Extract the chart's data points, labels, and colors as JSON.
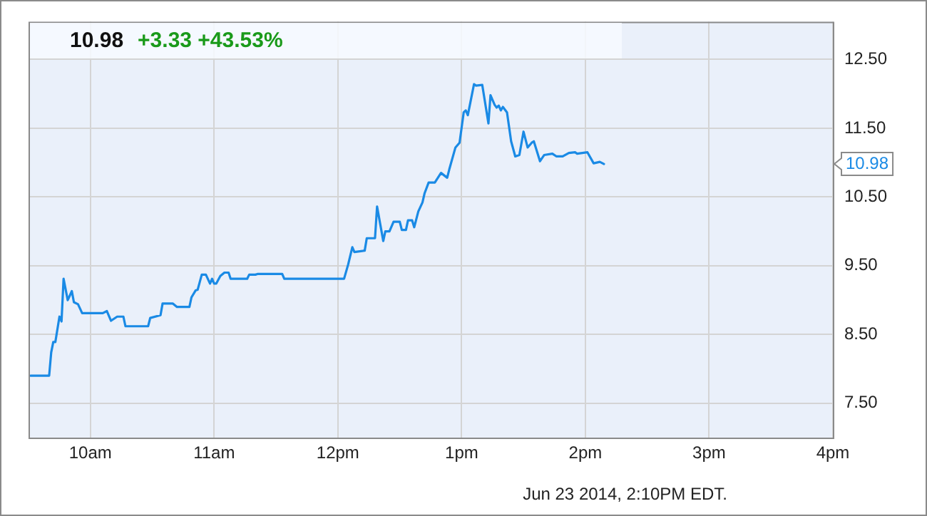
{
  "chart_data": {
    "type": "line",
    "title": "10.98",
    "subtitle": "+3.33 +43.53%",
    "x": [
      "2014-06-23T09:31",
      "2014-06-23T09:40",
      "2014-06-23T09:41",
      "2014-06-23T09:42",
      "2014-06-23T09:43",
      "2014-06-23T09:45",
      "2014-06-23T09:46",
      "2014-06-23T09:47",
      "2014-06-23T09:49",
      "2014-06-23T09:51",
      "2014-06-23T09:52",
      "2014-06-23T09:54",
      "2014-06-23T09:56",
      "2014-06-23T10:06",
      "2014-06-23T10:08",
      "2014-06-23T10:10",
      "2014-06-23T10:13",
      "2014-06-23T10:16",
      "2014-06-23T10:17",
      "2014-06-23T10:28",
      "2014-06-23T10:29",
      "2014-06-23T10:34",
      "2014-06-23T10:35",
      "2014-06-23T10:40",
      "2014-06-23T10:42",
      "2014-06-23T10:48",
      "2014-06-23T10:49",
      "2014-06-23T10:51",
      "2014-06-23T10:52",
      "2014-06-23T10:54",
      "2014-06-23T10:56",
      "2014-06-23T10:58",
      "2014-06-23T10:59",
      "2014-06-23T11:00",
      "2014-06-23T11:01",
      "2014-06-23T11:03",
      "2014-06-23T11:05",
      "2014-06-23T11:07",
      "2014-06-23T11:08",
      "2014-06-23T11:16",
      "2014-06-23T11:17",
      "2014-06-23T11:20",
      "2014-06-23T11:21",
      "2014-06-23T11:33",
      "2014-06-23T11:34",
      "2014-06-23T12:03",
      "2014-06-23T12:05",
      "2014-06-23T12:07",
      "2014-06-23T12:08",
      "2014-06-23T12:13",
      "2014-06-23T12:14",
      "2014-06-23T12:18",
      "2014-06-23T12:19",
      "2014-06-23T12:22",
      "2014-06-23T12:23",
      "2014-06-23T12:25",
      "2014-06-23T12:27",
      "2014-06-23T12:30",
      "2014-06-23T12:31",
      "2014-06-23T12:33",
      "2014-06-23T12:34",
      "2014-06-23T12:36",
      "2014-06-23T12:37",
      "2014-06-23T12:39",
      "2014-06-23T12:41",
      "2014-06-23T12:42",
      "2014-06-23T12:44",
      "2014-06-23T12:47",
      "2014-06-23T12:50",
      "2014-06-23T12:53",
      "2014-06-23T12:54",
      "2014-06-23T12:57",
      "2014-06-23T12:59",
      "2014-06-23T13:01",
      "2014-06-23T13:02",
      "2014-06-23T13:03",
      "2014-06-23T13:06",
      "2014-06-23T13:07",
      "2014-06-23T13:10",
      "2014-06-23T13:13",
      "2014-06-23T13:14",
      "2014-06-23T13:16",
      "2014-06-23T13:17",
      "2014-06-23T13:18",
      "2014-06-23T13:19",
      "2014-06-23T13:20",
      "2014-06-23T13:22",
      "2014-06-23T13:24",
      "2014-06-23T13:26",
      "2014-06-23T13:28",
      "2014-06-23T13:30",
      "2014-06-23T13:32",
      "2014-06-23T13:34",
      "2014-06-23T13:35",
      "2014-06-23T13:38",
      "2014-06-23T13:40",
      "2014-06-23T13:44",
      "2014-06-23T13:46",
      "2014-06-23T13:49",
      "2014-06-23T13:52",
      "2014-06-23T13:55",
      "2014-06-23T13:56",
      "2014-06-23T14:01",
      "2014-06-23T14:04",
      "2014-06-23T14:07",
      "2014-06-23T14:09"
    ],
    "series": [
      {
        "color": "#1a8ae5",
        "values": [
          7.9,
          7.9,
          8.24,
          8.39,
          8.39,
          8.76,
          8.69,
          9.31,
          9.0,
          9.13,
          8.97,
          8.94,
          8.81,
          8.81,
          8.84,
          8.7,
          8.76,
          8.76,
          8.62,
          8.62,
          8.74,
          8.78,
          8.95,
          8.95,
          8.9,
          8.9,
          9.04,
          9.14,
          9.15,
          9.37,
          9.37,
          9.24,
          9.31,
          9.24,
          9.24,
          9.35,
          9.4,
          9.4,
          9.31,
          9.31,
          9.37,
          9.37,
          9.38,
          9.38,
          9.31,
          9.31,
          9.52,
          9.77,
          9.7,
          9.72,
          9.9,
          9.9,
          10.36,
          9.86,
          10.0,
          10.0,
          10.14,
          10.14,
          10.02,
          10.02,
          10.16,
          10.16,
          10.06,
          10.29,
          10.42,
          10.55,
          10.71,
          10.71,
          10.85,
          10.78,
          10.9,
          11.22,
          11.29,
          11.73,
          11.76,
          11.69,
          12.14,
          12.12,
          12.13,
          11.57,
          11.98,
          11.84,
          11.8,
          11.83,
          11.76,
          11.81,
          11.73,
          11.31,
          11.09,
          11.11,
          11.45,
          11.22,
          11.29,
          11.31,
          11.02,
          11.11,
          11.13,
          11.09,
          11.09,
          11.14,
          11.15,
          11.13,
          11.15,
          10.99,
          11.01,
          10.98
        ]
      }
    ],
    "xlim": [
      "2014-06-23T09:30",
      "2014-06-23T16:00"
    ],
    "xticks": [
      {
        "value": "2014-06-23T10:00",
        "label": "10am"
      },
      {
        "value": "2014-06-23T11:00",
        "label": "11am"
      },
      {
        "value": "2014-06-23T12:00",
        "label": "12pm"
      },
      {
        "value": "2014-06-23T13:00",
        "label": "1pm"
      },
      {
        "value": "2014-06-23T14:00",
        "label": "2pm"
      },
      {
        "value": "2014-06-23T15:00",
        "label": "3pm"
      },
      {
        "value": "2014-06-23T16:00",
        "label": "4pm"
      }
    ],
    "ylim": [
      7,
      13.05
    ],
    "yticks": [
      {
        "value": 7.5,
        "label": "7.50"
      },
      {
        "value": 8.5,
        "label": "8.50"
      },
      {
        "value": 9.5,
        "label": "9.50"
      },
      {
        "value": 10.5,
        "label": "10.50"
      },
      {
        "value": 11.5,
        "label": "11.50"
      },
      {
        "value": 12.5,
        "label": "12.50"
      }
    ],
    "annotations": [
      "10.98",
      "Jun 23 2014, 2:10PM EDT."
    ],
    "grid": true,
    "legend": false,
    "marker": "none",
    "line_style": "solid"
  }
}
